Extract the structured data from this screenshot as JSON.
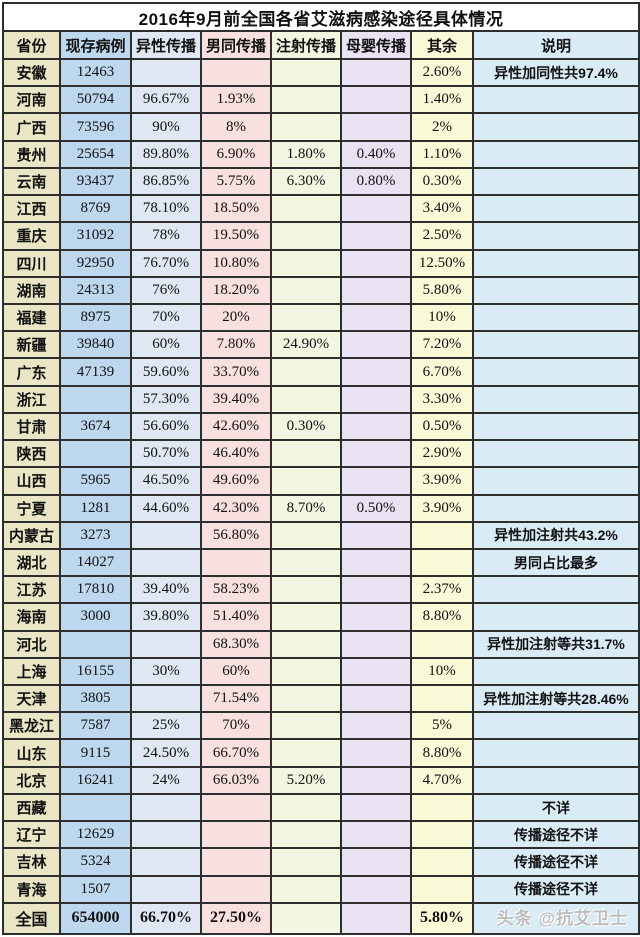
{
  "chart_data": {
    "type": "table",
    "title": "2016年9月前全国各省艾滋病感染途径具体情况",
    "columns": [
      "省份",
      "现存病例",
      "异性传播",
      "男同传播",
      "注射传播",
      "母婴传播",
      "其余",
      "说明"
    ],
    "rows": [
      [
        "安徽",
        "12463",
        "",
        "",
        "",
        "",
        "2.60%",
        "异性加同性共97.4%"
      ],
      [
        "河南",
        "50794",
        "96.67%",
        "1.93%",
        "",
        "",
        "1.40%",
        ""
      ],
      [
        "广西",
        "73596",
        "90%",
        "8%",
        "",
        "",
        "2%",
        ""
      ],
      [
        "贵州",
        "25654",
        "89.80%",
        "6.90%",
        "1.80%",
        "0.40%",
        "1.10%",
        ""
      ],
      [
        "云南",
        "93437",
        "86.85%",
        "5.75%",
        "6.30%",
        "0.80%",
        "0.30%",
        ""
      ],
      [
        "江西",
        "8769",
        "78.10%",
        "18.50%",
        "",
        "",
        "3.40%",
        ""
      ],
      [
        "重庆",
        "31092",
        "78%",
        "19.50%",
        "",
        "",
        "2.50%",
        ""
      ],
      [
        "四川",
        "92950",
        "76.70%",
        "10.80%",
        "",
        "",
        "12.50%",
        ""
      ],
      [
        "湖南",
        "24313",
        "76%",
        "18.20%",
        "",
        "",
        "5.80%",
        ""
      ],
      [
        "福建",
        "8975",
        "70%",
        "20%",
        "",
        "",
        "10%",
        ""
      ],
      [
        "新疆",
        "39840",
        "60%",
        "7.80%",
        "24.90%",
        "",
        "7.20%",
        ""
      ],
      [
        "广东",
        "47139",
        "59.60%",
        "33.70%",
        "",
        "",
        "6.70%",
        ""
      ],
      [
        "浙江",
        "",
        "57.30%",
        "39.40%",
        "",
        "",
        "3.30%",
        ""
      ],
      [
        "甘肃",
        "3674",
        "56.60%",
        "42.60%",
        "0.30%",
        "",
        "0.50%",
        ""
      ],
      [
        "陕西",
        "",
        "50.70%",
        "46.40%",
        "",
        "",
        "2.90%",
        ""
      ],
      [
        "山西",
        "5965",
        "46.50%",
        "49.60%",
        "",
        "",
        "3.90%",
        ""
      ],
      [
        "宁夏",
        "1281",
        "44.60%",
        "42.30%",
        "8.70%",
        "0.50%",
        "3.90%",
        ""
      ],
      [
        "内蒙古",
        "3273",
        "",
        "56.80%",
        "",
        "",
        "",
        "异性加注射共43.2%"
      ],
      [
        "湖北",
        "14027",
        "",
        "",
        "",
        "",
        "",
        "男同占比最多"
      ],
      [
        "江苏",
        "17810",
        "39.40%",
        "58.23%",
        "",
        "",
        "2.37%",
        ""
      ],
      [
        "海南",
        "3000",
        "39.80%",
        "51.40%",
        "",
        "",
        "8.80%",
        ""
      ],
      [
        "河北",
        "",
        "",
        "68.30%",
        "",
        "",
        "",
        "异性加注射等共31.7%"
      ],
      [
        "上海",
        "16155",
        "30%",
        "60%",
        "",
        "",
        "10%",
        ""
      ],
      [
        "天津",
        "3805",
        "",
        "71.54%",
        "",
        "",
        "",
        "异性加注射等共28.46%"
      ],
      [
        "黑龙江",
        "7587",
        "25%",
        "70%",
        "",
        "",
        "5%",
        ""
      ],
      [
        "山东",
        "9115",
        "24.50%",
        "66.70%",
        "",
        "",
        "8.80%",
        ""
      ],
      [
        "北京",
        "16241",
        "24%",
        "66.03%",
        "5.20%",
        "",
        "4.70%",
        ""
      ],
      [
        "西藏",
        "",
        "",
        "",
        "",
        "",
        "",
        "不详"
      ],
      [
        "辽宁",
        "12629",
        "",
        "",
        "",
        "",
        "",
        "传播途径不详"
      ],
      [
        "吉林",
        "5324",
        "",
        "",
        "",
        "",
        "",
        "传播途径不详"
      ],
      [
        "青海",
        "1507",
        "",
        "",
        "",
        "",
        "",
        "传播途径不详"
      ],
      [
        "全国",
        "654000",
        "66.70%",
        "27.50%",
        "",
        "",
        "5.80%",
        ""
      ]
    ],
    "total_row_label": "全国"
  },
  "watermark": "头条 @抗艾卫士",
  "colors": {
    "province_col": "#e9e5c5",
    "cases_col": "#bdd7ee",
    "hetero_col": "#dee7f2",
    "msm_col": "#f8e0df",
    "injection_col": "#f0f6e0",
    "mother_col": "#e9e2f2",
    "other_col": "#faf9d8",
    "note_col": "#d9ebf5",
    "border": "#2e2e2e",
    "title_bg": "#ffffff",
    "text": "#111111"
  }
}
